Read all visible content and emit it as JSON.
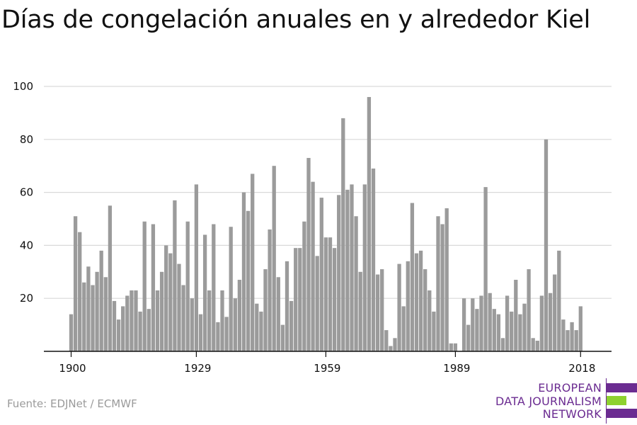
{
  "title": "Días de congelación anuales en y alrededor Kiel",
  "source": "Fuente: EDJNet / ECMWF",
  "logo": {
    "lines": [
      "EUROPEAN",
      "DATA JOURNALISM",
      "NETWORK"
    ],
    "colors": {
      "purple": "#6b2c91",
      "green": "#8ed12f"
    }
  },
  "colors": {
    "bar": "#9b9b9b",
    "grid": "#d9d9d9",
    "axis": "#111111",
    "text": "#111111"
  },
  "chart_data": {
    "type": "bar",
    "title": "Días de congelación anuales en y alrededor Kiel",
    "x": [
      1900,
      1901,
      1902,
      1903,
      1904,
      1905,
      1906,
      1907,
      1908,
      1909,
      1910,
      1911,
      1912,
      1913,
      1914,
      1915,
      1916,
      1917,
      1918,
      1919,
      1920,
      1921,
      1922,
      1923,
      1924,
      1925,
      1926,
      1927,
      1928,
      1929,
      1930,
      1931,
      1932,
      1933,
      1934,
      1935,
      1936,
      1937,
      1938,
      1939,
      1940,
      1941,
      1942,
      1943,
      1944,
      1945,
      1946,
      1947,
      1948,
      1949,
      1950,
      1951,
      1952,
      1953,
      1954,
      1955,
      1956,
      1957,
      1958,
      1959,
      1960,
      1961,
      1962,
      1963,
      1964,
      1965,
      1966,
      1967,
      1968,
      1969,
      1970,
      1971,
      1972,
      1973,
      1974,
      1975,
      1976,
      1977,
      1978,
      1979,
      1980,
      1981,
      1982,
      1983,
      1984,
      1985,
      1986,
      1987,
      1988,
      1989,
      1990,
      1991,
      1992,
      1993,
      1994,
      1995,
      1996,
      1997,
      1998,
      1999,
      2000,
      2001,
      2002,
      2003,
      2004,
      2005,
      2006,
      2007,
      2008,
      2009,
      2010,
      2011,
      2012,
      2013,
      2014,
      2015,
      2016,
      2017,
      2018
    ],
    "values": [
      14,
      51,
      45,
      26,
      32,
      25,
      30,
      38,
      28,
      55,
      19,
      12,
      17,
      21,
      23,
      23,
      15,
      49,
      16,
      48,
      23,
      30,
      40,
      37,
      57,
      33,
      25,
      49,
      20,
      63,
      14,
      44,
      23,
      48,
      11,
      23,
      13,
      47,
      20,
      27,
      60,
      53,
      67,
      18,
      15,
      31,
      46,
      70,
      28,
      10,
      34,
      19,
      39,
      39,
      49,
      73,
      64,
      36,
      58,
      43,
      43,
      39,
      59,
      88,
      61,
      63,
      51,
      30,
      63,
      96,
      69,
      29,
      31,
      8,
      2,
      5,
      33,
      17,
      34,
      56,
      37,
      38,
      31,
      23,
      15,
      51,
      48,
      54,
      3,
      3,
      0,
      20,
      10,
      20,
      16,
      21,
      62,
      22,
      16,
      14,
      5,
      21,
      15,
      27,
      14,
      18,
      31,
      5,
      4,
      21,
      80,
      22,
      29,
      38,
      12,
      8,
      11,
      8,
      17
    ],
    "xticks": [
      "1900",
      "1929",
      "1959",
      "1989",
      "2018"
    ],
    "yticks": [
      "20",
      "40",
      "60",
      "80",
      "100"
    ],
    "ylim": [
      0,
      100
    ],
    "xlabel": "",
    "ylabel": "",
    "grid": true
  }
}
